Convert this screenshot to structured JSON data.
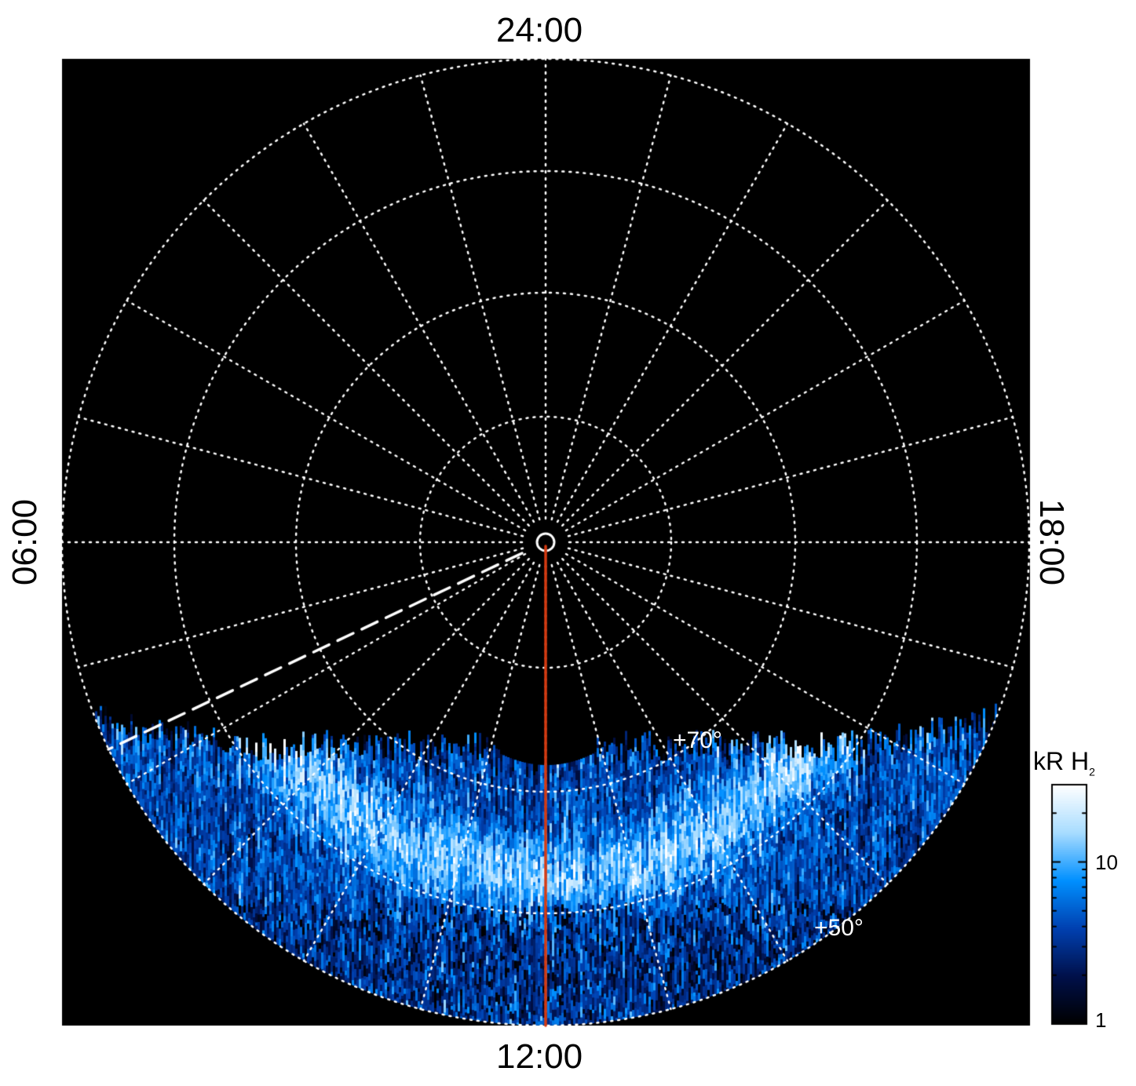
{
  "chart_data": {
    "type": "heatmap",
    "projection": "polar (north pole view, local time vs latitude)",
    "local_time_labels": {
      "top": "24:00",
      "bottom": "12:00",
      "left": "06:00",
      "right": "18:00"
    },
    "latitude_labels": [
      "+70°",
      "+50°"
    ],
    "latitude_circles_deg": [
      89,
      80,
      70,
      60,
      50
    ],
    "meridian_spacing_hours": 1,
    "grid": true,
    "colorbar": {
      "title": "kR H",
      "title_subscript": "2",
      "scale": "log",
      "range": [
        1,
        30
      ],
      "ticks": [
        "1",
        "10"
      ],
      "colors": [
        "#000000",
        "#00104a",
        "#0040b0",
        "#0090ff",
        "#a8dcff",
        "#ffffff"
      ]
    },
    "overlays": {
      "noon_meridian_line_color": "#d63a10",
      "dashed_line_color": "#ffffff"
    }
  }
}
